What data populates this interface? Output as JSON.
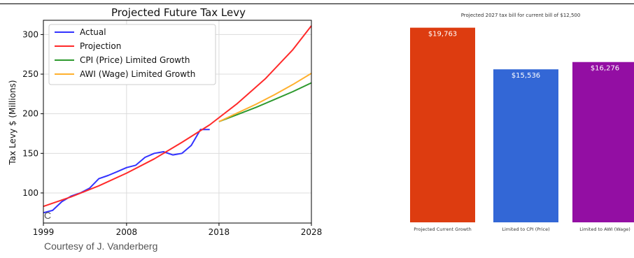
{
  "credit": "Courtesy of J. Vanderberg",
  "stray_mark": "C",
  "colors": {
    "actual": "#3333ff",
    "projection": "#ff2a2a",
    "cpi": "#2e9a2e",
    "awi": "#ffb02e",
    "bar_projected": "#dd3c10",
    "bar_cpi": "#3367d6",
    "bar_awi": "#930ea3"
  },
  "chart_data": [
    {
      "type": "line",
      "title": "Projected Future Tax Levy",
      "ylabel": "Tax Levy $ (Millions)",
      "xlabel": "",
      "xlim": [
        1999,
        2028
      ],
      "ylim": [
        62,
        318
      ],
      "xticks": [
        1999,
        2008,
        2018,
        2028
      ],
      "yticks": [
        100,
        150,
        200,
        250,
        300
      ],
      "grid": true,
      "legend_position": "top-left",
      "series": [
        {
          "name": "Actual",
          "color_key": "actual",
          "x": [
            1999,
            2000,
            2001,
            2002,
            2003,
            2004,
            2005,
            2006,
            2007,
            2008,
            2009,
            2010,
            2011,
            2012,
            2013,
            2014,
            2015,
            2016,
            2017
          ],
          "y": [
            75,
            78,
            89,
            96,
            100,
            106,
            118,
            122,
            127,
            132,
            135,
            145,
            150,
            152,
            148,
            150,
            160,
            180,
            180
          ]
        },
        {
          "name": "Projection",
          "color_key": "projection",
          "x": [
            1999,
            2002,
            2005,
            2008,
            2011,
            2014,
            2017,
            2020,
            2023,
            2026,
            2028
          ],
          "y": [
            83,
            95,
            109,
            125,
            143,
            164,
            186,
            213,
            244,
            281,
            311
          ]
        },
        {
          "name": "CPI (Price) Limited Growth",
          "color_key": "cpi",
          "x": [
            2018,
            2020,
            2022,
            2024,
            2026,
            2028
          ],
          "y": [
            190,
            199,
            208,
            218,
            228,
            239
          ]
        },
        {
          "name": "AWI (Wage) Limited Growth",
          "color_key": "awi",
          "x": [
            2018,
            2020,
            2022,
            2024,
            2026,
            2028
          ],
          "y": [
            190,
            201,
            212,
            224,
            237,
            251
          ]
        }
      ]
    },
    {
      "type": "bar",
      "title": "Projected 2027 tax bill for current bill of $12,500",
      "xlabel": "",
      "ylabel": "",
      "ylim": [
        0,
        20800
      ],
      "categories": [
        "Projected Current Growth",
        "Limited to CPI (Price)",
        "Limited to AWI (Wage)"
      ],
      "values": [
        19763,
        15536,
        16276
      ],
      "value_labels": [
        "$19,763",
        "$15,536",
        "$16,276"
      ],
      "color_keys": [
        "bar_projected",
        "bar_cpi",
        "bar_awi"
      ]
    }
  ]
}
